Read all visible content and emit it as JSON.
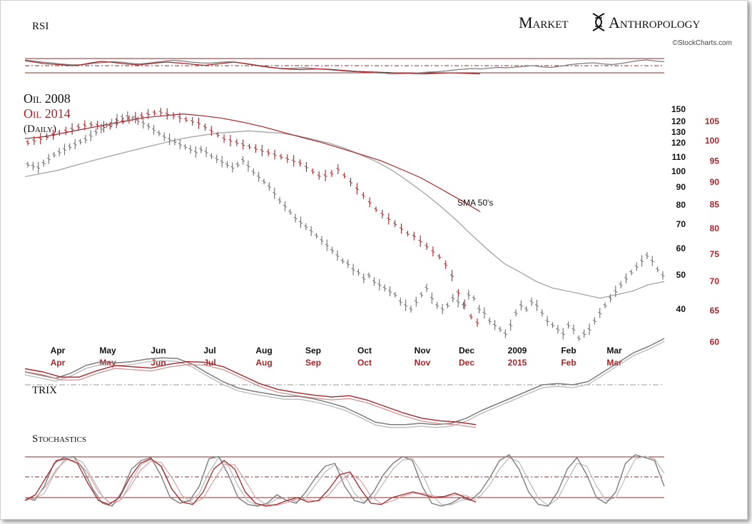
{
  "brand": {
    "word1": "Market",
    "word2": "Anthropology",
    "credit": "©StockCharts.com"
  },
  "colors": {
    "oil_2008": "#7d7d7d",
    "oil_2014": "#a8262a",
    "guide_red": "#8e2d2d",
    "text_black": "#111111"
  },
  "chart_data": [
    {
      "type": "line",
      "panel": "RSI",
      "title": "RSI",
      "guides": [
        70,
        50,
        30
      ],
      "ylim": [
        0,
        100
      ],
      "series": [
        {
          "color_key": "oil_2008",
          "values": [
            66,
            63,
            60,
            58,
            55,
            53,
            52,
            54,
            57,
            59,
            61,
            60,
            57,
            55,
            57,
            60,
            63,
            65,
            63,
            60,
            58,
            57,
            59,
            61,
            60,
            56,
            52,
            48,
            45,
            43,
            42,
            43,
            44,
            42,
            40,
            38,
            36,
            34,
            33,
            32,
            30,
            29,
            27,
            28,
            29,
            30,
            32,
            33,
            35,
            38,
            40,
            42,
            41,
            43,
            45,
            44,
            46,
            48,
            50,
            47,
            45,
            48,
            52,
            55,
            57,
            58,
            55,
            53,
            56,
            60,
            64,
            66,
            63,
            61
          ]
        },
        {
          "color_key": "oil_2014",
          "values": [
            64,
            60,
            56,
            54,
            52,
            50,
            53,
            58,
            62,
            60,
            57,
            54,
            52,
            55,
            58,
            60,
            58,
            56,
            53,
            51,
            54,
            57,
            60,
            57,
            53,
            49,
            45,
            42,
            40,
            39,
            40,
            41,
            40,
            38,
            36,
            34,
            33,
            32,
            31,
            30,
            29,
            28,
            27,
            28,
            29,
            30,
            29,
            28,
            27
          ]
        }
      ]
    },
    {
      "type": "line",
      "panel": "Price",
      "titles": [
        "Oil 2008",
        "Oil 2014",
        "(Daily)"
      ],
      "annotation": "SMA 50's",
      "x_months_2008": [
        "Apr",
        "May",
        "Jun",
        "Jul",
        "Aug",
        "Sep",
        "Oct",
        "Nov",
        "Dec",
        "2009",
        "Feb",
        "Mar"
      ],
      "x_months_2014": [
        "Apr",
        "May",
        "Jun",
        "Jul",
        "Aug",
        "Sep",
        "Oct",
        "Nov",
        "Dec",
        "2015",
        "Feb",
        "Mar"
      ],
      "y_axis_2008": [
        150,
        120,
        130,
        120,
        110,
        100,
        90,
        80,
        70,
        60,
        50,
        40
      ],
      "y_axis_2014": [
        105,
        100,
        95,
        90,
        85,
        80,
        75,
        70,
        65,
        60
      ],
      "scale": "log",
      "series": [
        {
          "name": "Oil 2008",
          "color_key": "oil_2008",
          "values": [
            104,
            103,
            102,
            105,
            108,
            111,
            113,
            115,
            117,
            119,
            121,
            123,
            126,
            129,
            132,
            135,
            137,
            140,
            142,
            143,
            141,
            139,
            137,
            134,
            131,
            128,
            125,
            123,
            121,
            119,
            117,
            115,
            113,
            115,
            113,
            110,
            108,
            106,
            104,
            102,
            104,
            107,
            103,
            99,
            96,
            93,
            90,
            86,
            82,
            79,
            76,
            73,
            71,
            69,
            67,
            65,
            63,
            61,
            59,
            57,
            55,
            54,
            52,
            51,
            49,
            50,
            48,
            47,
            46,
            45,
            44,
            42,
            41,
            40,
            42,
            44,
            46,
            43,
            41,
            40,
            41,
            43,
            42,
            41,
            44,
            43,
            40,
            39,
            37,
            36,
            35,
            34,
            36,
            39,
            41,
            40,
            42,
            41,
            39,
            37,
            36,
            35,
            34,
            36,
            35,
            33,
            34,
            35,
            37,
            39,
            41,
            43,
            45,
            47,
            49,
            51,
            53,
            55,
            57,
            55,
            52,
            50
          ]
        },
        {
          "name": "Oil 2014",
          "color_key": "oil_2014",
          "values": [
            99.5,
            100,
            100.5,
            101,
            101.5,
            102,
            102.5,
            103,
            103.5,
            104,
            104.2,
            104,
            103.6,
            103.8,
            104.5,
            105,
            105.5,
            106,
            106.5,
            107,
            107.3,
            107.5,
            107,
            106.5,
            106,
            105.5,
            105,
            104.5,
            103.5,
            102.5,
            101.5,
            100.5,
            100,
            99.5,
            99,
            98.5,
            98,
            97.5,
            97,
            96.5,
            96,
            95.5,
            95,
            94.5,
            93.5,
            92.5,
            91.5,
            91.5,
            92,
            93,
            91.5,
            90,
            88.5,
            87,
            85.5,
            84,
            83,
            82,
            81,
            80,
            79,
            78.5,
            77.5,
            76.5,
            75.5,
            74.5,
            73,
            71,
            68,
            66,
            64,
            63
          ]
        },
        {
          "name": "SMA50 2008",
          "color_key": "oil_2008",
          "values": [
            96,
            98,
            100,
            103,
            106,
            109,
            112,
            115,
            118,
            121,
            124,
            126,
            128,
            129,
            130,
            129,
            128,
            126,
            123,
            120,
            116,
            111,
            106,
            100,
            93,
            86,
            79,
            72,
            65,
            59,
            54,
            51,
            48,
            46,
            45,
            44,
            43,
            44,
            45,
            47,
            48
          ]
        },
        {
          "name": "SMA50 2014",
          "color_key": "oil_2014",
          "values": [
            100.5,
            101,
            102,
            103,
            104,
            105,
            106,
            106.5,
            107,
            106.5,
            105.8,
            104.8,
            103.6,
            102.2,
            100.8,
            99.5,
            98,
            96.5,
            95,
            93,
            91,
            88.5,
            86,
            83.5
          ]
        }
      ]
    },
    {
      "type": "line",
      "panel": "TRIX",
      "title": "TRIX",
      "series": [
        {
          "color_key": "oil_2008",
          "values": [
            0.2,
            0.15,
            0.1,
            0.18,
            0.3,
            0.36,
            0.34,
            0.36,
            0.4,
            0.42,
            0.41,
            0.32,
            0.18,
            0.05,
            -0.05,
            -0.1,
            -0.14,
            -0.18,
            -0.18,
            -0.22,
            -0.28,
            -0.35,
            -0.46,
            -0.58,
            -0.62,
            -0.62,
            -0.6,
            -0.62,
            -0.6,
            -0.52,
            -0.4,
            -0.3,
            -0.2,
            -0.1,
            0.0,
            0.02,
            0.0,
            0.05,
            0.2,
            0.35,
            0.5,
            0.6,
            0.72
          ]
        },
        {
          "color_key": "oil_2014",
          "values": [
            0.25,
            0.2,
            0.12,
            0.12,
            0.22,
            0.3,
            0.28,
            0.26,
            0.32,
            0.36,
            0.35,
            0.28,
            0.15,
            0.02,
            -0.07,
            -0.12,
            -0.16,
            -0.19,
            -0.17,
            -0.24,
            -0.34,
            -0.44,
            -0.52,
            -0.56,
            -0.58,
            -0.62
          ]
        }
      ]
    },
    {
      "type": "line",
      "panel": "Stochastics",
      "title": "Stochastics",
      "guides": [
        80,
        50,
        20
      ],
      "ylim": [
        0,
        100
      ],
      "series": [
        {
          "color_key": "oil_2008",
          "values": [
            20,
            15,
            40,
            80,
            90,
            92,
            70,
            35,
            10,
            5,
            30,
            70,
            85,
            90,
            60,
            20,
            10,
            15,
            40,
            88,
            92,
            60,
            20,
            8,
            5,
            10,
            25,
            15,
            10,
            30,
            55,
            75,
            80,
            40,
            15,
            10,
            30,
            60,
            80,
            92,
            85,
            40,
            10,
            5,
            10,
            20,
            15,
            30,
            55,
            85,
            95,
            70,
            30,
            8,
            5,
            30,
            70,
            90,
            60,
            20,
            10,
            30,
            80,
            95,
            90,
            85,
            40
          ]
        },
        {
          "color_key": "oil_2014",
          "values": [
            15,
            25,
            55,
            85,
            88,
            80,
            45,
            15,
            8,
            20,
            55,
            80,
            88,
            75,
            35,
            12,
            8,
            30,
            70,
            85,
            70,
            30,
            10,
            5,
            8,
            15,
            20,
            12,
            15,
            35,
            60,
            65,
            35,
            10,
            8,
            20,
            25,
            30,
            25,
            20,
            22,
            28,
            20,
            12
          ]
        }
      ]
    }
  ]
}
